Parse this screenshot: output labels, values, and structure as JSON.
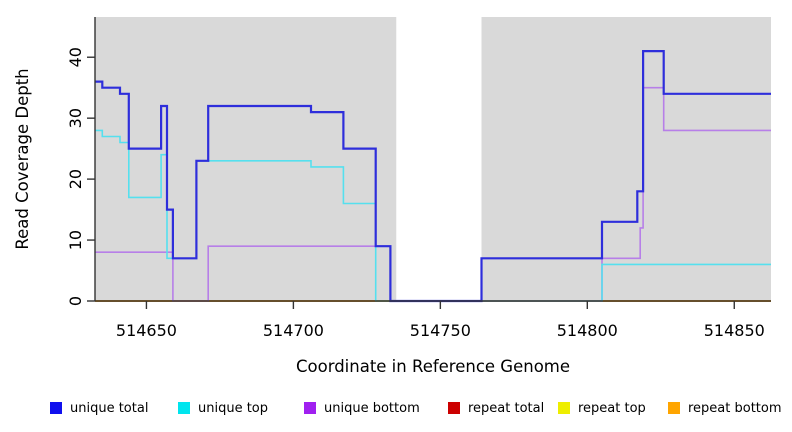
{
  "figure": {
    "background": "#FFFFFF",
    "plot_background": "#D9D9D9",
    "masked_band_color": "#FFFFFF",
    "axis_color": "#333333"
  },
  "chart_data": {
    "type": "line",
    "subtype": "step-post",
    "title": "",
    "xlabel": "Coordinate in Reference Genome",
    "ylabel": "Read Coverage Depth",
    "xlim": [
      514632.5,
      514862.5
    ],
    "ylim": [
      0,
      46.6
    ],
    "x_ticks": [
      514650,
      514700,
      514750,
      514800,
      514850
    ],
    "y_ticks": [
      0,
      10,
      20,
      30,
      40
    ],
    "grid": false,
    "legend_position": "bottom",
    "masked_region": {
      "from": 514735,
      "to": 514764
    },
    "series": [
      {
        "name": "repeat total",
        "color": "#CC0000",
        "width": 1.6,
        "steps": [
          [
            514632.5,
            0
          ]
        ]
      },
      {
        "name": "repeat top",
        "color": "#EEEE00",
        "width": 1.6,
        "steps": [
          [
            514632.5,
            0
          ]
        ]
      },
      {
        "name": "repeat bottom",
        "color": "#FFA519",
        "width": 2,
        "steps": [
          [
            514632.5,
            0
          ]
        ]
      },
      {
        "name": "unique bottom",
        "color": "#B77FE8",
        "width": 1.6,
        "steps": [
          [
            514632.5,
            8
          ],
          [
            514659,
            0
          ],
          [
            514671,
            9
          ],
          [
            514733,
            0
          ],
          [
            514805,
            7
          ],
          [
            514818,
            12
          ],
          [
            514819,
            35
          ],
          [
            514826,
            28
          ]
        ]
      },
      {
        "name": "unique top",
        "color": "#55E0EE",
        "width": 1.6,
        "steps": [
          [
            514632.5,
            28
          ],
          [
            514635,
            27
          ],
          [
            514641,
            26
          ],
          [
            514644,
            17
          ],
          [
            514655,
            24
          ],
          [
            514657,
            7
          ],
          [
            514667,
            23
          ],
          [
            514706,
            22
          ],
          [
            514717,
            16
          ],
          [
            514728,
            0
          ],
          [
            514805,
            6
          ]
        ]
      },
      {
        "name": "unique total",
        "color": "#2E2EDB",
        "width": 2.2,
        "steps": [
          [
            514632.5,
            36
          ],
          [
            514635,
            35
          ],
          [
            514641,
            34
          ],
          [
            514644,
            25
          ],
          [
            514655,
            32
          ],
          [
            514657,
            15
          ],
          [
            514659,
            7
          ],
          [
            514667,
            23
          ],
          [
            514671,
            32
          ],
          [
            514706,
            31
          ],
          [
            514717,
            25
          ],
          [
            514728,
            9
          ],
          [
            514733,
            0
          ],
          [
            514764,
            7
          ],
          [
            514805,
            13
          ],
          [
            514817,
            18
          ],
          [
            514819,
            41
          ],
          [
            514826,
            34
          ]
        ]
      }
    ]
  },
  "legend": {
    "items": [
      {
        "label": "unique total",
        "color": "#1010EE"
      },
      {
        "label": "unique top",
        "color": "#00E5EE"
      },
      {
        "label": "unique bottom",
        "color": "#A020F0"
      },
      {
        "label": "repeat total",
        "color": "#CC0000"
      },
      {
        "label": "repeat top",
        "color": "#EEEE00"
      },
      {
        "label": "repeat bottom",
        "color": "#FFA500"
      }
    ]
  }
}
